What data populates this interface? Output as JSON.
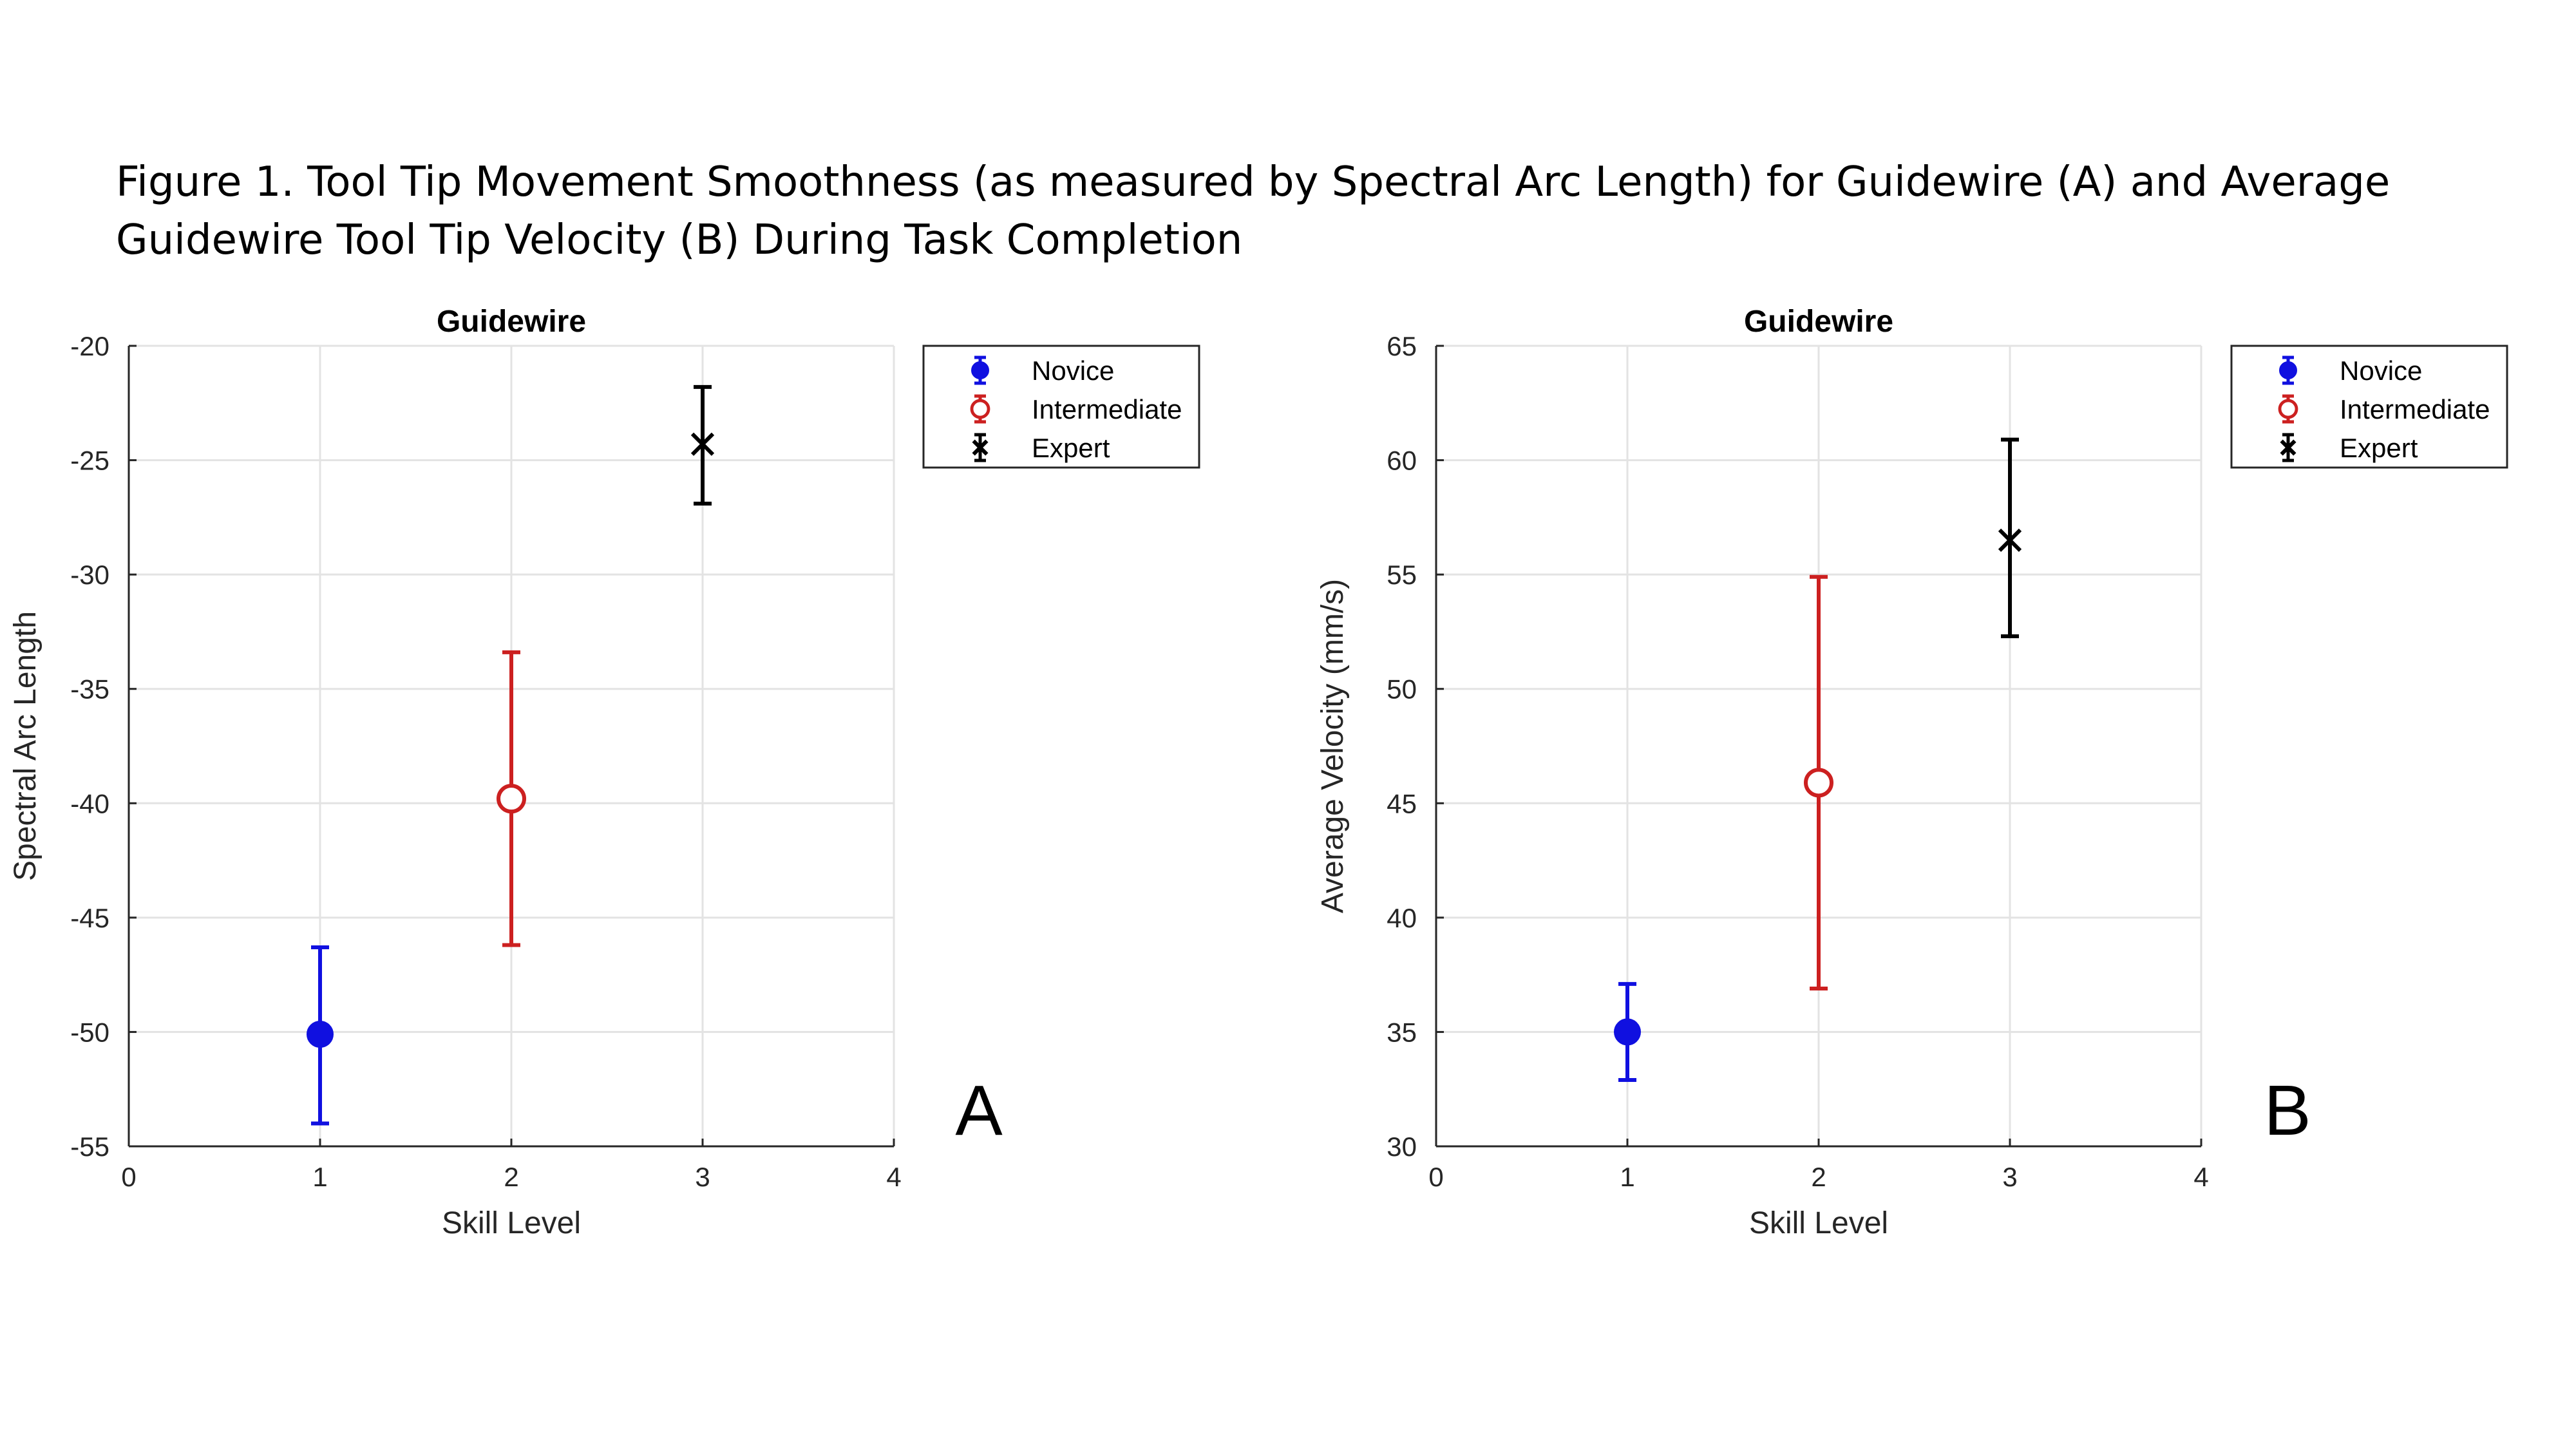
{
  "caption": "Figure 1. Tool Tip Movement Smoothness (as measured by Spectral Arc Length) for Guidewire (A) and Average Guidewire Tool Tip Velocity (B) During Task Completion",
  "chart_data": [
    {
      "type": "scatter",
      "panel_label": "A",
      "title": "Guidewire",
      "xlabel": "Skill Level",
      "ylabel": "Spectral Arc Length",
      "xlim": [
        0,
        4
      ],
      "ylim": [
        -55,
        -20
      ],
      "xticks": [
        "0",
        "1",
        "2",
        "3",
        "4"
      ],
      "yticks": [
        "-20",
        "-25",
        "-30",
        "-35",
        "-40",
        "-45",
        "-50",
        "-55"
      ],
      "grid": true,
      "legend_position": "outside-top-right",
      "series": [
        {
          "name": "Novice",
          "color": "#1010e0",
          "marker": "filled-circle",
          "x": 1,
          "y": -50.1,
          "err_low": -54.0,
          "err_high": -46.3
        },
        {
          "name": "Intermediate",
          "color": "#cc2020",
          "marker": "open-circle",
          "x": 2,
          "y": -39.8,
          "err_low": -46.2,
          "err_high": -33.4
        },
        {
          "name": "Expert",
          "color": "#000000",
          "marker": "x",
          "x": 3,
          "y": -24.3,
          "err_low": -26.9,
          "err_high": -21.8
        }
      ]
    },
    {
      "type": "scatter",
      "panel_label": "B",
      "title": "Guidewire",
      "xlabel": "Skill Level",
      "ylabel": "Average Velocity (mm/s)",
      "xlim": [
        0,
        4
      ],
      "ylim": [
        30,
        65
      ],
      "xticks": [
        "0",
        "1",
        "2",
        "3",
        "4"
      ],
      "yticks": [
        "65",
        "60",
        "55",
        "50",
        "45",
        "40",
        "35",
        "30"
      ],
      "grid": true,
      "legend_position": "outside-top-right",
      "series": [
        {
          "name": "Novice",
          "color": "#1010e0",
          "marker": "filled-circle",
          "x": 1,
          "y": 35.0,
          "err_low": 32.9,
          "err_high": 37.1
        },
        {
          "name": "Intermediate",
          "color": "#cc2020",
          "marker": "open-circle",
          "x": 2,
          "y": 45.9,
          "err_low": 36.9,
          "err_high": 54.9
        },
        {
          "name": "Expert",
          "color": "#000000",
          "marker": "x",
          "x": 3,
          "y": 56.5,
          "err_low": 52.3,
          "err_high": 60.9
        }
      ]
    }
  ]
}
